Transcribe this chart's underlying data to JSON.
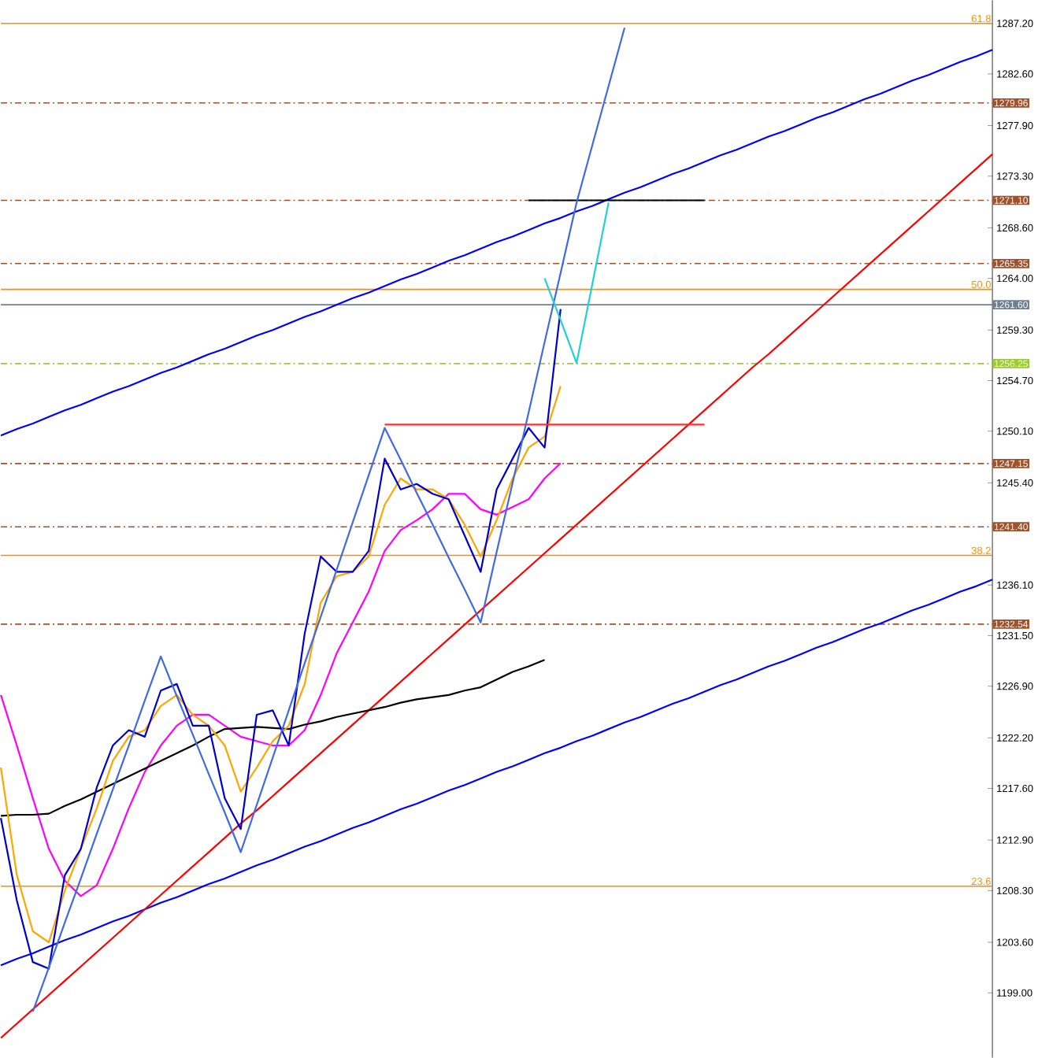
{
  "chart_data": {
    "type": "line",
    "categories": [
      null,
      null,
      null,
      null,
      null,
      null,
      null,
      null,
      null,
      null,
      null,
      null,
      null,
      null,
      null,
      null,
      null,
      null,
      null,
      null,
      null,
      null,
      null,
      null,
      null,
      null,
      null,
      null,
      null,
      null,
      null,
      null,
      null,
      null,
      null,
      null,
      null,
      null,
      null,
      null,
      null,
      null,
      null,
      null,
      null,
      null,
      null,
      null,
      null,
      null,
      null,
      null,
      null,
      null,
      null,
      null,
      null,
      null,
      null,
      null,
      null,
      null,
      null
    ],
    "series": [
      {
        "color": "#0000ff",
        "values": [
          1249.7,
          1250.3,
          1250.8,
          1251.4,
          1252.0,
          1252.5,
          1253.1,
          1253.7,
          1254.2,
          1254.8,
          1255.4,
          1255.9,
          1256.5,
          1257.1,
          1257.6,
          1258.2,
          1258.8,
          1259.3,
          1259.9,
          1260.5,
          1261.0,
          1261.6,
          1262.2,
          1262.7,
          1263.3,
          1263.9,
          1264.4,
          1265.0,
          1265.6,
          1266.1,
          1266.7,
          1267.3,
          1267.8,
          1268.4,
          1269.0,
          1269.5,
          1270.1,
          1270.6,
          1271.2,
          1271.8,
          1272.3,
          1272.9,
          1273.5,
          1274.0,
          1274.6,
          1275.2,
          1275.7,
          1276.3,
          1276.9,
          1277.4,
          1278.0,
          1278.6,
          1279.1,
          1279.7,
          1280.3,
          1280.8,
          1281.4,
          1282.0,
          1282.5,
          1283.1,
          1283.7,
          1284.2,
          1284.8
        ]
      },
      {
        "color": "#0000ff",
        "values": [
          1201.5,
          1202.1,
          1202.6,
          1203.2,
          1203.8,
          1204.3,
          1204.9,
          1205.5,
          1206.0,
          1206.6,
          1207.2,
          1207.7,
          1208.3,
          1208.9,
          1209.4,
          1210.0,
          1210.6,
          1211.1,
          1211.7,
          1212.3,
          1212.8,
          1213.4,
          1214.0,
          1214.5,
          1215.1,
          1215.7,
          1216.2,
          1216.8,
          1217.4,
          1217.9,
          1218.5,
          1219.1,
          1219.6,
          1220.2,
          1220.8,
          1221.3,
          1221.9,
          1222.4,
          1223.0,
          1223.6,
          1224.1,
          1224.7,
          1225.3,
          1225.8,
          1226.4,
          1227.0,
          1227.5,
          1228.1,
          1228.7,
          1229.2,
          1229.8,
          1230.4,
          1230.9,
          1231.5,
          1232.1,
          1232.6,
          1233.2,
          1233.8,
          1234.3,
          1234.9,
          1235.5,
          1236.0,
          1236.6
        ]
      },
      {
        "color": "#ff0000",
        "values": [
          1194.9,
          1196.2,
          1197.5,
          1198.8,
          1200.1,
          1201.4,
          1202.7,
          1204.0,
          1205.3,
          1206.6,
          1207.9,
          1209.2,
          1210.5,
          1211.8,
          1213.1,
          1214.4,
          1215.6,
          1216.9,
          1218.2,
          1219.5,
          1220.8,
          1222.1,
          1223.4,
          1224.7,
          1226.0,
          1227.3,
          1228.6,
          1229.9,
          1231.2,
          1232.5,
          1233.8,
          1235.1,
          1236.4,
          1237.7,
          1239.0,
          1240.3,
          1241.6,
          1242.9,
          1244.2,
          1245.5,
          1246.8,
          1248.1,
          1249.4,
          1250.7,
          1252.0,
          1253.3,
          1254.6,
          1255.9,
          1257.1,
          1258.4,
          1259.7,
          1261.0,
          1262.3,
          1263.6,
          1264.9,
          1266.2,
          1267.5,
          1268.8,
          1270.1,
          1271.4,
          1272.7,
          1274.0,
          1275.3
        ]
      },
      {
        "color": "#ff00ff",
        "values": [
          1226.1,
          1221.5,
          1216.7,
          1212.1,
          1209.2,
          1207.8,
          1208.8,
          1212.1,
          1215.8,
          1219.1,
          1221.5,
          1223.3,
          1224.3,
          1224.3,
          1223.3,
          1222.3,
          1221.9,
          1221.5,
          1221.5,
          1222.9,
          1226.1,
          1229.9,
          1232.7,
          1235.5,
          1239.2,
          1241.1,
          1242.0,
          1243.0,
          1244.4,
          1244.4,
          1243.0,
          1242.5,
          1243.2,
          1243.9,
          1245.8,
          1247.2,
          null,
          null,
          null,
          null,
          null,
          null,
          null,
          null,
          null,
          null,
          null,
          null,
          null,
          null,
          null,
          null,
          null,
          null,
          null,
          null,
          null,
          null,
          null,
          null,
          null,
          null,
          null
        ]
      },
      {
        "color": "#000000",
        "values": [
          1215.1,
          1215.2,
          1215.2,
          1215.3,
          1216.0,
          1216.6,
          1217.3,
          1218.0,
          1218.7,
          1219.4,
          1220.1,
          1220.8,
          1221.5,
          1222.3,
          1223.0,
          1223.1,
          1223.2,
          1223.1,
          1223.0,
          1223.4,
          1223.7,
          1224.1,
          1224.4,
          1224.7,
          1225.0,
          1225.4,
          1225.7,
          1225.9,
          1226.1,
          1226.5,
          1226.8,
          1227.5,
          1228.2,
          1228.7,
          1229.3,
          null,
          null,
          null,
          null,
          null,
          null,
          null,
          null,
          null,
          null,
          null,
          null,
          null,
          null,
          null,
          null,
          null,
          null,
          null,
          null,
          null,
          null,
          null,
          null,
          null,
          null,
          null,
          null
        ]
      },
      {
        "color": "#ffa500",
        "values": [
          1219.5,
          1209.7,
          1204.6,
          1203.6,
          1208.3,
          1212.1,
          1215.8,
          1220.1,
          1222.3,
          1222.9,
          1225.1,
          1226.1,
          1224.3,
          1223.3,
          1221.5,
          1217.3,
          1219.5,
          1221.9,
          1223.3,
          1227.1,
          1234.5,
          1236.9,
          1237.3,
          1238.7,
          1243.4,
          1245.8,
          1244.8,
          1244.8,
          1243.9,
          1241.6,
          1238.7,
          1242.0,
          1245.8,
          1248.6,
          1249.6,
          1254.2,
          null,
          null,
          null,
          null,
          null,
          null,
          null,
          null,
          null,
          null,
          null,
          null,
          null,
          null,
          null,
          null,
          null,
          null,
          null,
          null,
          null,
          null,
          null,
          null,
          null,
          null,
          null
        ]
      },
      {
        "color": "#0000cd",
        "values": [
          1214.9,
          1207.4,
          1201.8,
          1201.2,
          1209.7,
          1212.1,
          1217.7,
          1221.5,
          1222.9,
          1222.3,
          1226.5,
          1227.1,
          1223.3,
          1223.3,
          1216.7,
          1213.9,
          1224.3,
          1224.7,
          1221.5,
          1231.7,
          1238.7,
          1237.3,
          1237.3,
          1239.2,
          1247.6,
          1244.8,
          1245.3,
          1244.4,
          1243.9,
          1240.6,
          1237.3,
          1244.8,
          1247.6,
          1250.4,
          1248.6,
          1261.2,
          null,
          null,
          null,
          null,
          null,
          null,
          null,
          null,
          null,
          null,
          null,
          null,
          null,
          null,
          null,
          null,
          null,
          null,
          null,
          null,
          null,
          null,
          null,
          null,
          null,
          null,
          null
        ]
      },
      {
        "color": "#ff3030",
        "values": [
          null,
          null,
          null,
          null,
          null,
          null,
          null,
          null,
          null,
          null,
          null,
          null,
          null,
          null,
          null,
          null,
          null,
          null,
          null,
          null,
          null,
          null,
          null,
          null,
          1250.7,
          1250.7,
          1250.7,
          1250.7,
          1250.7,
          1250.7,
          1250.7,
          1250.7,
          1250.7,
          1250.7,
          1250.7,
          1250.7,
          1250.7,
          1250.7,
          1250.7,
          1250.7,
          1250.7,
          1250.7,
          1250.7,
          1250.7,
          1250.7,
          null,
          null,
          null,
          null,
          null,
          null,
          null,
          null,
          null,
          null,
          null,
          null,
          null,
          null,
          null,
          null,
          null,
          null
        ]
      },
      {
        "color": "#000000",
        "values": [
          null,
          null,
          null,
          null,
          null,
          null,
          null,
          null,
          null,
          null,
          null,
          null,
          null,
          null,
          null,
          null,
          null,
          null,
          null,
          null,
          null,
          null,
          null,
          null,
          null,
          null,
          null,
          null,
          null,
          null,
          null,
          null,
          null,
          1271.1,
          1271.1,
          1271.1,
          1271.1,
          1271.1,
          1271.1,
          1271.1,
          1271.1,
          1271.1,
          1271.1,
          1271.1,
          1271.1,
          null,
          null,
          null,
          null,
          null,
          null,
          null,
          null,
          null,
          null,
          null,
          null,
          null,
          null,
          null,
          null,
          null,
          null
        ]
      },
      {
        "color": "#4169e1",
        "values": [
          null,
          null,
          1197.3,
          1201.3,
          1205.4,
          1209.4,
          1213.5,
          1217.5,
          1221.5,
          1225.6,
          1229.6,
          1226.0,
          1222.5,
          1218.9,
          1215.4,
          1211.8,
          1216.1,
          1220.4,
          1224.7,
          1229.0,
          1233.2,
          1237.5,
          1241.8,
          1246.1,
          1250.4,
          1247.5,
          1244.5,
          1241.6,
          1238.6,
          1235.7,
          1232.7,
          1239.1,
          1245.4,
          1251.8,
          1258.2,
          1264.5,
          1270.9,
          1276.2,
          1281.5,
          1286.8,
          null,
          null,
          null,
          null,
          null,
          null,
          null,
          null,
          null,
          null,
          null,
          null,
          null,
          null,
          null,
          null,
          null,
          null,
          null,
          null,
          null,
          null,
          null
        ]
      },
      {
        "color": "#20d0d8",
        "values": [
          null,
          null,
          null,
          null,
          null,
          null,
          null,
          null,
          null,
          null,
          null,
          null,
          null,
          null,
          null,
          null,
          null,
          null,
          null,
          null,
          null,
          null,
          null,
          null,
          null,
          null,
          null,
          null,
          null,
          null,
          null,
          null,
          null,
          null,
          1264.0,
          1260.2,
          1256.3,
          1263.6,
          1270.9,
          null,
          null,
          null,
          null,
          null,
          null,
          null,
          null,
          null,
          null,
          null,
          null,
          null,
          null,
          null,
          null,
          null,
          null,
          null,
          null,
          null,
          null,
          null,
          null
        ]
      }
    ],
    "ylim": [
      1193.1,
      1289.3
    ],
    "yticks": [
      {
        "value": 1287.2,
        "label": "1287.20"
      },
      {
        "value": 1282.6,
        "label": "1282.60"
      },
      {
        "value": 1277.9,
        "label": "1277.90"
      },
      {
        "value": 1273.3,
        "label": "1273.30"
      },
      {
        "value": 1268.6,
        "label": "1268.60"
      },
      {
        "value": 1264.0,
        "label": "1264.00"
      },
      {
        "value": 1259.3,
        "label": "1259.30"
      },
      {
        "value": 1254.7,
        "label": "1254.70"
      },
      {
        "value": 1250.1,
        "label": "1250.10"
      },
      {
        "value": 1245.4,
        "label": "1245.40"
      },
      {
        "value": 1236.1,
        "label": "1236.10"
      },
      {
        "value": 1231.5,
        "label": "1231.50"
      },
      {
        "value": 1226.9,
        "label": "1226.90"
      },
      {
        "value": 1222.2,
        "label": "1222.20"
      },
      {
        "value": 1217.6,
        "label": "1217.60"
      },
      {
        "value": 1212.9,
        "label": "1212.90"
      },
      {
        "value": 1208.3,
        "label": "1208.30"
      },
      {
        "value": 1203.6,
        "label": "1203.60"
      },
      {
        "value": 1199.0,
        "label": "1199.00"
      }
    ],
    "ref_lines": [
      {
        "axis": "y",
        "value": 1287.2,
        "color": "#ff8c00",
        "line_style": "solid"
      },
      {
        "axis": "y",
        "value": 1279.96,
        "label": "1279.96",
        "color": "#a0522d",
        "line_style": "dashed"
      },
      {
        "axis": "y",
        "value": 1271.1,
        "label": "1271.10",
        "color": "#a0522d",
        "line_style": "dashed"
      },
      {
        "axis": "y",
        "value": 1265.35,
        "label": "1265.35",
        "color": "#a0522d",
        "line_style": "dashed"
      },
      {
        "axis": "y",
        "value": 1263.0,
        "color": "#ff8c00",
        "line_style": "solid"
      },
      {
        "axis": "y",
        "value": 1261.6,
        "label": "1261.60",
        "color": "#708090",
        "line_style": "solid"
      },
      {
        "axis": "y",
        "value": 1256.25,
        "label": "1256.25",
        "color": "#9acd32",
        "line_style": "dashed"
      },
      {
        "axis": "y",
        "value": 1247.15,
        "label": "1247.15",
        "color": "#a0522d",
        "line_style": "dashed"
      },
      {
        "axis": "y",
        "value": 1241.4,
        "label": "1241.40",
        "color": "#a0522d",
        "line_style": "dashed"
      },
      {
        "axis": "y",
        "value": 1238.8,
        "color": "#ff8c00",
        "line_style": "solid"
      },
      {
        "axis": "y",
        "value": 1232.54,
        "label": "1232.54",
        "color": "#a0522d",
        "line_style": "dashed"
      },
      {
        "axis": "y",
        "value": 1208.7,
        "color": "#ff8c00",
        "line_style": "solid"
      }
    ],
    "annotations": [
      {
        "text": "61.8",
        "y": 1287.2
      },
      {
        "text": "50.0",
        "y": 1263.0
      },
      {
        "text": "38.2",
        "y": 1238.8
      },
      {
        "text": "23.6",
        "y": 1208.7
      }
    ],
    "tick_labels": "y",
    "grid": false,
    "marker": "none"
  }
}
